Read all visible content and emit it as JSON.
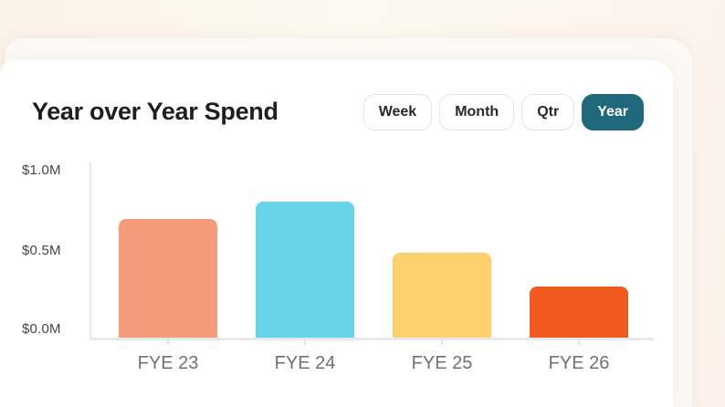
{
  "page": {
    "background_top_color": "#fbf2e8",
    "surface_color": "#fcf9f4",
    "card_color": "#ffffff"
  },
  "card": {
    "title": "Year over Year Spend",
    "active_button_color": "#20697c",
    "range_buttons": [
      {
        "label": "Week",
        "active": false
      },
      {
        "label": "Month",
        "active": false
      },
      {
        "label": "Qtr",
        "active": false
      },
      {
        "label": "Year",
        "active": true
      }
    ]
  },
  "chart_data": {
    "type": "bar",
    "title": "Year over Year Spend",
    "categories": [
      "FYE 23",
      "FYE 24",
      "FYE 25",
      "FYE 26"
    ],
    "values": [
      0.7,
      0.8,
      0.5,
      0.3
    ],
    "value_unit": "$M",
    "bar_colors": [
      "#f49b7b",
      "#68d4e8",
      "#fbd06d",
      "#f15a1e"
    ],
    "xlabel": "",
    "ylabel": "",
    "ylim": [
      0,
      1.0
    ],
    "yticks": [
      0.0,
      0.5,
      1.0
    ],
    "ytick_labels": [
      "$0.0M",
      "$0.5M",
      "$1.0M"
    ],
    "grid": false,
    "legend": false,
    "axis_color": "#e7eaec",
    "tick_label_color": "#42464a",
    "category_label_color": "#6c7370"
  }
}
